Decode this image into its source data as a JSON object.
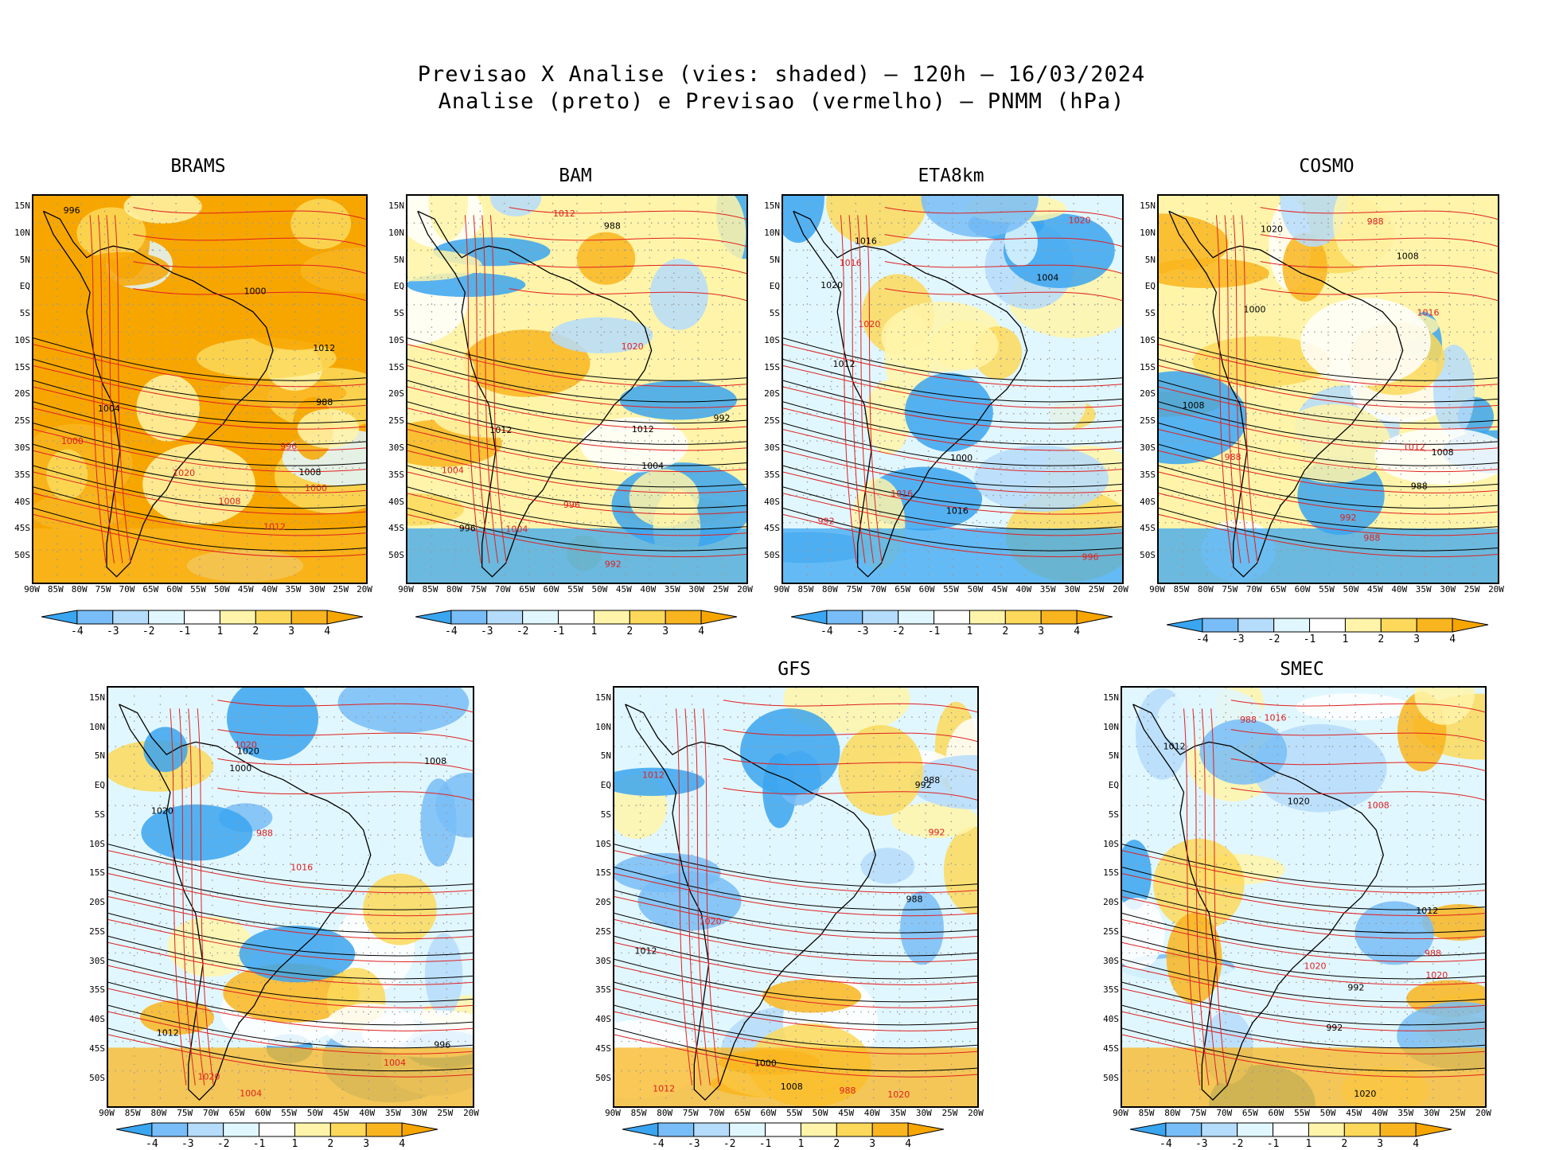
{
  "title": {
    "line1": "Previsao X Analise (vies: shaded) – 120h – 16/03/2024",
    "line2": "Analise (preto) e Previsao (vermelho) – PNMM (hPa)"
  },
  "panels": [
    {
      "name": "BRAMS",
      "bias": "warm"
    },
    {
      "name": "BAM",
      "bias": "mixed-warm"
    },
    {
      "name": "ETA8km",
      "bias": "cool"
    },
    {
      "name": "COSMO",
      "bias": "mixed-warm"
    },
    {
      "name": "",
      "bias": "mixed"
    },
    {
      "name": "GFS",
      "bias": "mixed"
    },
    {
      "name": "SMEC",
      "bias": "mixed"
    }
  ],
  "lat_labels": [
    "15N",
    "10N",
    "5N",
    "EQ",
    "5S",
    "10S",
    "15S",
    "20S",
    "25S",
    "30S",
    "35S",
    "40S",
    "45S",
    "50S"
  ],
  "lon_labels": [
    "90W",
    "85W",
    "80W",
    "75W",
    "70W",
    "65W",
    "60W",
    "55W",
    "50W",
    "45W",
    "40W",
    "35W",
    "30W",
    "25W",
    "20W"
  ],
  "colorbar": {
    "labels": [
      "-4",
      "-3",
      "-2",
      "-1",
      "1",
      "2",
      "3",
      "4"
    ],
    "colors": [
      "#3aa5f0",
      "#78bdf7",
      "#b5dcfb",
      "#e1f7ff",
      "#ffffff",
      "#fff4a9",
      "#fcd95a",
      "#f9b51f",
      "#f7a600"
    ]
  },
  "contour_labels": [
    "1016",
    "1012",
    "1008",
    "1004",
    "1000",
    "996",
    "992",
    "988",
    "1020"
  ],
  "colors": {
    "analysis": "#000000",
    "forecast": "#e02020"
  }
}
